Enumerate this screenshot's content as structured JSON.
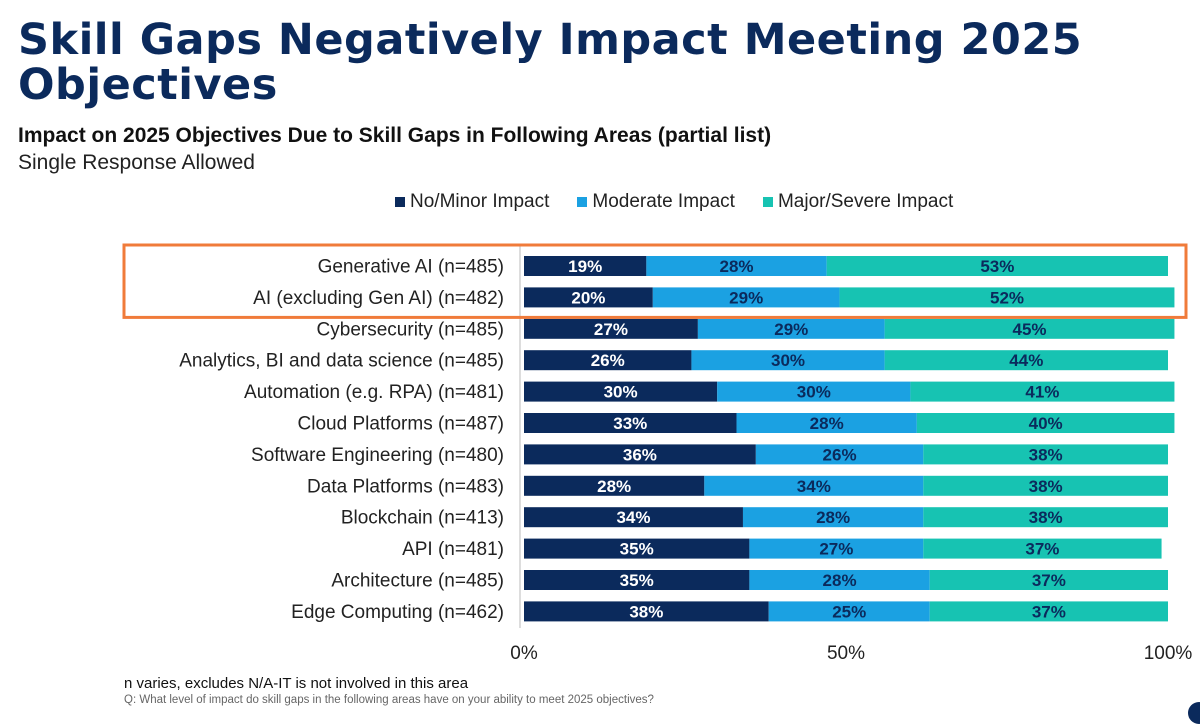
{
  "title": "Skill Gaps Negatively Impact Meeting 2025 Objectives",
  "subtitle": "Impact on 2025 Objectives Due to Skill Gaps in Following Areas (partial list)",
  "note": "Single Response Allowed",
  "footnote": "n varies, excludes N/A-IT is not involved in this area",
  "question": "Q: What level of impact do skill gaps in the following areas have on your ability to meet 2025 objectives?",
  "colors": {
    "no_minor": "#0b2a5c",
    "moderate": "#1ba1e2",
    "major": "#17c3b2",
    "highlight": "#f07b3a"
  },
  "chart_data": {
    "type": "bar",
    "orientation": "horizontal-stacked-100",
    "title": "Impact on 2025 Objectives Due to Skill Gaps in Following Areas (partial list)",
    "xlim": [
      0,
      100
    ],
    "xticks": [
      "0%",
      "50%",
      "100%"
    ],
    "legend": [
      "No/Minor Impact",
      "Moderate Impact",
      "Major/Severe Impact"
    ],
    "legend_position": "top",
    "highlighted_categories": [
      "Generative AI (n=485)",
      "AI (excluding Gen AI) (n=482)"
    ],
    "categories": [
      "Generative AI (n=485)",
      "AI (excluding Gen AI) (n=482)",
      "Cybersecurity (n=485)",
      "Analytics, BI and data science (n=485)",
      "Automation (e.g. RPA) (n=481)",
      "Cloud Platforms (n=487)",
      "Software Engineering (n=480)",
      "Data Platforms (n=483)",
      "Blockchain (n=413)",
      "API (n=481)",
      "Architecture (n=485)",
      "Edge Computing (n=462)"
    ],
    "series": [
      {
        "name": "No/Minor Impact",
        "values": [
          19,
          20,
          27,
          26,
          30,
          33,
          36,
          28,
          34,
          35,
          35,
          38
        ]
      },
      {
        "name": "Moderate Impact",
        "values": [
          28,
          29,
          29,
          30,
          30,
          28,
          26,
          34,
          28,
          27,
          28,
          25
        ]
      },
      {
        "name": "Major/Severe Impact",
        "values": [
          53,
          52,
          45,
          44,
          41,
          40,
          38,
          38,
          38,
          37,
          37,
          37
        ]
      }
    ]
  }
}
